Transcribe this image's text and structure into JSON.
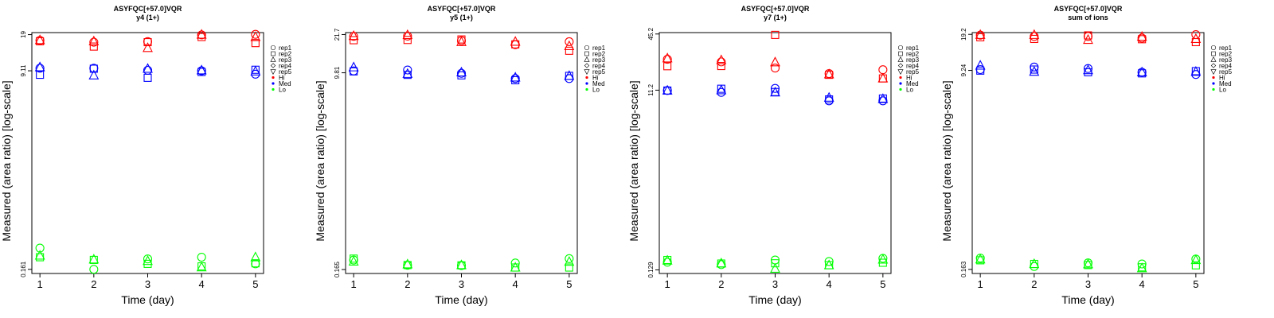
{
  "chart_data": [
    {
      "type": "scatter",
      "title": "ASYFQC[+57.0]VQR",
      "subtitle": "y4 (1+)",
      "xlabel": "Time (day)",
      "ylabel": "Measured (area ratio) [log-scale]",
      "log_y": true,
      "x_ticks": [
        "1",
        "2",
        "3",
        "4",
        "5"
      ],
      "y_ticks": [
        "0.161",
        "9.11",
        "19"
      ],
      "y_tick_values": [
        0.161,
        9.11,
        19
      ],
      "ylim": [
        0.148,
        19.8
      ],
      "xlim": [
        0.85,
        5.15
      ],
      "grid": false,
      "legend_position": "right",
      "legend": [
        {
          "label": "rep1",
          "marker": "circle"
        },
        {
          "label": "rep2",
          "marker": "square"
        },
        {
          "label": "rep3",
          "marker": "triangle-up"
        },
        {
          "label": "rep4",
          "marker": "diamond"
        },
        {
          "label": "rep5",
          "marker": "triangle-down"
        },
        {
          "label": "Hi",
          "color": "#ff0000"
        },
        {
          "label": "Med",
          "color": "#0000ff"
        },
        {
          "label": "Lo",
          "color": "#00ff00"
        }
      ],
      "series": [
        {
          "level": "Hi",
          "color": "#ff0000",
          "rep": "rep1",
          "marker": "circle",
          "x": [
            1,
            2,
            3,
            4,
            5
          ],
          "y": [
            16.9,
            16.3,
            16.5,
            18.9,
            19.1
          ]
        },
        {
          "level": "Hi",
          "color": "#ff0000",
          "rep": "rep2",
          "marker": "square",
          "x": [
            1,
            2,
            3,
            4,
            5
          ],
          "y": [
            16.6,
            14.9,
            16.3,
            18.1,
            16.0
          ]
        },
        {
          "level": "Hi",
          "color": "#ff0000",
          "rep": "rep3",
          "marker": "triangle-up",
          "x": [
            1,
            2,
            3,
            4,
            5
          ],
          "y": [
            17.0,
            16.6,
            14.5,
            19.0,
            18.1
          ]
        },
        {
          "level": "Med",
          "color": "#0000ff",
          "rep": "rep1",
          "marker": "circle",
          "x": [
            1,
            2,
            3,
            4,
            5
          ],
          "y": [
            9.6,
            9.6,
            9.2,
            9.1,
            8.5
          ]
        },
        {
          "level": "Med",
          "color": "#0000ff",
          "rep": "rep2",
          "marker": "square",
          "x": [
            1,
            2,
            3,
            4,
            5
          ],
          "y": [
            8.4,
            9.5,
            7.9,
            8.9,
            9.3
          ]
        },
        {
          "level": "Med",
          "color": "#0000ff",
          "rep": "rep3",
          "marker": "triangle-up",
          "x": [
            1,
            2,
            3,
            4,
            5
          ],
          "y": [
            9.8,
            8.3,
            9.5,
            9.2,
            9.0
          ]
        },
        {
          "level": "Lo",
          "color": "#00ff00",
          "rep": "rep1",
          "marker": "circle",
          "x": [
            1,
            2,
            3,
            4,
            5
          ],
          "y": [
            0.248,
            0.161,
            0.199,
            0.206,
            0.18
          ]
        },
        {
          "level": "Lo",
          "color": "#00ff00",
          "rep": "rep2",
          "marker": "square",
          "x": [
            1,
            2,
            3,
            4,
            5
          ],
          "y": [
            0.206,
            0.195,
            0.18,
            0.171,
            0.182
          ]
        },
        {
          "level": "Lo",
          "color": "#00ff00",
          "rep": "rep3",
          "marker": "triangle-up",
          "x": [
            1,
            2,
            3,
            4,
            5
          ],
          "y": [
            0.213,
            0.197,
            0.191,
            0.168,
            0.206
          ]
        }
      ]
    },
    {
      "type": "scatter",
      "title": "ASYFQC[+57.0]VQR",
      "subtitle": "y5 (1+)",
      "xlabel": "Time (day)",
      "ylabel": "Measured (area ratio) [log-scale]",
      "log_y": true,
      "x_ticks": [
        "1",
        "2",
        "3",
        "4",
        "5"
      ],
      "y_ticks": [
        "0.165",
        "9.81",
        "21.7"
      ],
      "y_tick_values": [
        0.165,
        9.81,
        21.7
      ],
      "ylim": [
        0.152,
        22.6
      ],
      "xlim": [
        0.85,
        5.15
      ],
      "grid": false,
      "legend_position": "right",
      "legend": [
        {
          "label": "rep1",
          "marker": "circle"
        },
        {
          "label": "rep2",
          "marker": "square"
        },
        {
          "label": "rep3",
          "marker": "triangle-up"
        },
        {
          "label": "rep4",
          "marker": "diamond"
        },
        {
          "label": "rep5",
          "marker": "triangle-down"
        },
        {
          "label": "Hi",
          "color": "#ff0000"
        },
        {
          "label": "Med",
          "color": "#0000ff"
        },
        {
          "label": "Lo",
          "color": "#00ff00"
        }
      ],
      "series": [
        {
          "level": "Hi",
          "color": "#ff0000",
          "rep": "rep1",
          "marker": "circle",
          "x": [
            1,
            2,
            3,
            4,
            5
          ],
          "y": [
            20.9,
            21.0,
            19.1,
            17.6,
            18.7
          ]
        },
        {
          "level": "Hi",
          "color": "#ff0000",
          "rep": "rep2",
          "marker": "square",
          "x": [
            1,
            2,
            3,
            4,
            5
          ],
          "y": [
            19.3,
            19.4,
            19.6,
            17.7,
            15.5
          ]
        },
        {
          "level": "Hi",
          "color": "#ff0000",
          "rep": "rep3",
          "marker": "triangle-up",
          "x": [
            1,
            2,
            3,
            4,
            5
          ],
          "y": [
            21.1,
            21.5,
            18.6,
            18.7,
            17.1
          ]
        },
        {
          "level": "Med",
          "color": "#0000ff",
          "rep": "rep1",
          "marker": "circle",
          "x": [
            1,
            2,
            3,
            4,
            5
          ],
          "y": [
            10.2,
            10.4,
            9.7,
            8.7,
            8.7
          ]
        },
        {
          "level": "Med",
          "color": "#0000ff",
          "rep": "rep2",
          "marker": "square",
          "x": [
            1,
            2,
            3,
            4,
            5
          ],
          "y": [
            10.1,
            9.4,
            9.3,
            8.4,
            9.2
          ]
        },
        {
          "level": "Med",
          "color": "#0000ff",
          "rep": "rep3",
          "marker": "triangle-up",
          "x": [
            1,
            2,
            3,
            4,
            5
          ],
          "y": [
            11.0,
            9.6,
            9.9,
            8.9,
            9.2
          ]
        },
        {
          "level": "Lo",
          "color": "#00ff00",
          "rep": "rep1",
          "marker": "circle",
          "x": [
            1,
            2,
            3,
            4,
            5
          ],
          "y": [
            0.201,
            0.18,
            0.179,
            0.189,
            0.207
          ]
        },
        {
          "level": "Lo",
          "color": "#00ff00",
          "rep": "rep2",
          "marker": "square",
          "x": [
            1,
            2,
            3,
            4,
            5
          ],
          "y": [
            0.207,
            0.181,
            0.18,
            0.172,
            0.172
          ]
        },
        {
          "level": "Lo",
          "color": "#00ff00",
          "rep": "rep3",
          "marker": "triangle-up",
          "x": [
            1,
            2,
            3,
            4,
            5
          ],
          "y": [
            0.195,
            0.184,
            0.181,
            0.172,
            0.194
          ]
        }
      ]
    },
    {
      "type": "scatter",
      "title": "ASYFQC[+57.0]VQR",
      "subtitle": "y7 (1+)",
      "xlabel": "Time (day)",
      "ylabel": "Measured (area ratio) [log-scale]",
      "log_y": true,
      "x_ticks": [
        "1",
        "2",
        "3",
        "4",
        "5"
      ],
      "y_ticks": [
        "0.129",
        "11.2",
        "45.2"
      ],
      "y_tick_values": [
        0.129,
        11.2,
        45.2
      ],
      "ylim": [
        0.118,
        46.8
      ],
      "xlim": [
        0.85,
        5.15
      ],
      "grid": false,
      "legend_position": "right",
      "legend": [
        {
          "label": "rep1",
          "marker": "circle"
        },
        {
          "label": "rep2",
          "marker": "square"
        },
        {
          "label": "rep3",
          "marker": "triangle-up"
        },
        {
          "label": "rep4",
          "marker": "diamond"
        },
        {
          "label": "rep5",
          "marker": "triangle-down"
        },
        {
          "label": "Hi",
          "color": "#ff0000"
        },
        {
          "label": "Med",
          "color": "#0000ff"
        },
        {
          "label": "Lo",
          "color": "#00ff00"
        }
      ],
      "series": [
        {
          "level": "Hi",
          "color": "#ff0000",
          "rep": "rep1",
          "marker": "circle",
          "x": [
            1,
            2,
            3,
            4,
            5
          ],
          "y": [
            24.1,
            22.6,
            19.4,
            16.9,
            18.6
          ]
        },
        {
          "level": "Hi",
          "color": "#ff0000",
          "rep": "rep2",
          "marker": "square",
          "x": [
            1,
            2,
            3,
            4,
            5
          ],
          "y": [
            20.3,
            20.4,
            44.2,
            16.4,
            15.0
          ]
        },
        {
          "level": "Hi",
          "color": "#ff0000",
          "rep": "rep3",
          "marker": "triangle-up",
          "x": [
            1,
            2,
            3,
            4,
            5
          ],
          "y": [
            24.7,
            23.6,
            22.4,
            16.6,
            15.0
          ]
        },
        {
          "level": "Med",
          "color": "#0000ff",
          "rep": "rep1",
          "marker": "circle",
          "x": [
            1,
            2,
            3,
            4,
            5
          ],
          "y": [
            11.1,
            10.6,
            11.7,
            8.6,
            8.6
          ]
        },
        {
          "level": "Med",
          "color": "#0000ff",
          "rep": "rep2",
          "marker": "square",
          "x": [
            1,
            2,
            3,
            4,
            5
          ],
          "y": [
            11.1,
            11.6,
            10.7,
            8.9,
            9.1
          ]
        },
        {
          "level": "Med",
          "color": "#0000ff",
          "rep": "rep3",
          "marker": "triangle-up",
          "x": [
            1,
            2,
            3,
            4,
            5
          ],
          "y": [
            11.1,
            11.2,
            10.6,
            9.3,
            9.0
          ]
        },
        {
          "level": "Lo",
          "color": "#00ff00",
          "rep": "rep1",
          "marker": "circle",
          "x": [
            1,
            2,
            3,
            4,
            5
          ],
          "y": [
            0.156,
            0.147,
            0.165,
            0.159,
            0.172
          ]
        },
        {
          "level": "Lo",
          "color": "#00ff00",
          "rep": "rep2",
          "marker": "square",
          "x": [
            1,
            2,
            3,
            4,
            5
          ],
          "y": [
            0.165,
            0.151,
            0.152,
            0.145,
            0.154
          ]
        },
        {
          "level": "Lo",
          "color": "#00ff00",
          "rep": "rep3",
          "marker": "triangle-up",
          "x": [
            1,
            2,
            3,
            4,
            5
          ],
          "y": [
            0.163,
            0.152,
            0.133,
            0.145,
            0.167
          ]
        }
      ]
    },
    {
      "type": "scatter",
      "title": "ASYFQC[+57.0]VQR",
      "subtitle": "sum of ions",
      "xlabel": "Time (day)",
      "ylabel": "Measured (area ratio) [log-scale]",
      "log_y": true,
      "x_ticks": [
        "1",
        "2",
        "3",
        "4",
        "5"
      ],
      "y_ticks": [
        "0.163",
        "9.24",
        "19.2"
      ],
      "y_tick_values": [
        0.163,
        9.24,
        19.2
      ],
      "ylim": [
        0.15,
        19.9
      ],
      "xlim": [
        0.85,
        5.15
      ],
      "grid": false,
      "legend_position": "right",
      "legend": [
        {
          "label": "rep1",
          "marker": "circle"
        },
        {
          "label": "rep2",
          "marker": "square"
        },
        {
          "label": "rep3",
          "marker": "triangle-up"
        },
        {
          "label": "rep4",
          "marker": "diamond"
        },
        {
          "label": "rep5",
          "marker": "triangle-down"
        },
        {
          "label": "Hi",
          "color": "#ff0000"
        },
        {
          "label": "Med",
          "color": "#0000ff"
        },
        {
          "label": "Lo",
          "color": "#00ff00"
        }
      ],
      "series": [
        {
          "level": "Hi",
          "color": "#ff0000",
          "rep": "rep1",
          "marker": "circle",
          "x": [
            1,
            2,
            3,
            4,
            5
          ],
          "y": [
            18.9,
            18.4,
            18.4,
            17.8,
            19.1
          ]
        },
        {
          "level": "Hi",
          "color": "#ff0000",
          "rep": "rep2",
          "marker": "square",
          "x": [
            1,
            2,
            3,
            4,
            5
          ],
          "y": [
            18.1,
            17.5,
            18.8,
            17.4,
            16.4
          ]
        },
        {
          "level": "Hi",
          "color": "#ff0000",
          "rep": "rep3",
          "marker": "triangle-up",
          "x": [
            1,
            2,
            3,
            4,
            5
          ],
          "y": [
            19.0,
            19.0,
            17.2,
            18.3,
            17.5
          ]
        },
        {
          "level": "Med",
          "color": "#0000ff",
          "rep": "rep1",
          "marker": "circle",
          "x": [
            1,
            2,
            3,
            4,
            5
          ],
          "y": [
            9.4,
            9.9,
            9.6,
            8.9,
            8.5
          ]
        },
        {
          "level": "Med",
          "color": "#0000ff",
          "rep": "rep2",
          "marker": "square",
          "x": [
            1,
            2,
            3,
            4,
            5
          ],
          "y": [
            9.2,
            9.4,
            8.9,
            8.7,
            9.1
          ]
        },
        {
          "level": "Med",
          "color": "#0000ff",
          "rep": "rep3",
          "marker": "triangle-up",
          "x": [
            1,
            2,
            3,
            4,
            5
          ],
          "y": [
            10.2,
            9.0,
            9.3,
            8.9,
            9.0
          ]
        },
        {
          "level": "Lo",
          "color": "#00ff00",
          "rep": "rep1",
          "marker": "circle",
          "x": [
            1,
            2,
            3,
            4,
            5
          ],
          "y": [
            0.205,
            0.173,
            0.186,
            0.182,
            0.201
          ]
        },
        {
          "level": "Lo",
          "color": "#00ff00",
          "rep": "rep2",
          "marker": "square",
          "x": [
            1,
            2,
            3,
            4,
            5
          ],
          "y": [
            0.196,
            0.182,
            0.178,
            0.17,
            0.177
          ]
        },
        {
          "level": "Lo",
          "color": "#00ff00",
          "rep": "rep3",
          "marker": "triangle-up",
          "x": [
            1,
            2,
            3,
            4,
            5
          ],
          "y": [
            0.2,
            0.182,
            0.181,
            0.167,
            0.197
          ]
        }
      ]
    }
  ]
}
